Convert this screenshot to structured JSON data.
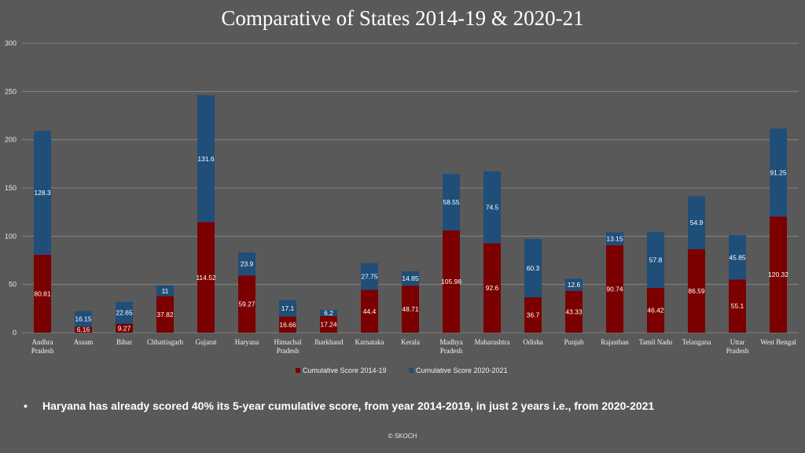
{
  "title": "Comparative of States 2014-19 & 2020-21",
  "note": "Haryana has already scored 40% its 5-year cumulative score, from year 2014-2019,  in just 2 years i.e., from 2020-2021",
  "bullet": "•",
  "footer": "© SKOCH",
  "colors": {
    "series1": "#7b0000",
    "series2": "#1f4e79",
    "grid": "#8c8c8c",
    "background": "#595959"
  },
  "chart_data": {
    "type": "bar",
    "stacked": true,
    "title": "Comparative of States 2014-19 & 2020-21",
    "xlabel": "",
    "ylabel": "",
    "ylim": [
      0,
      300
    ],
    "yticks": [
      0,
      50,
      100,
      150,
      200,
      250,
      300
    ],
    "grid": true,
    "legend": "bottom",
    "categories": [
      [
        "Andhra",
        "Pradesh"
      ],
      [
        "Assam"
      ],
      [
        "Bihar"
      ],
      [
        "Chhattisgarh"
      ],
      [
        "Gujarat"
      ],
      [
        "Haryana"
      ],
      [
        "Himachal",
        "Pradesh"
      ],
      [
        "Jharkhand"
      ],
      [
        "Karnataka"
      ],
      [
        "Kerala"
      ],
      [
        "Madhya",
        "Pradesh"
      ],
      [
        "Maharashtra"
      ],
      [
        "Odisha"
      ],
      [
        "Punjab"
      ],
      [
        "Rajasthan"
      ],
      [
        "Tamil Nadu"
      ],
      [
        "Telangana"
      ],
      [
        "Uttar",
        "Pradesh"
      ],
      [
        "West Bengal"
      ]
    ],
    "series": [
      {
        "name": "Cumulative Score 2014-19",
        "values": [
          80.81,
          6.16,
          9.27,
          37.82,
          114.52,
          59.27,
          16.66,
          17.24,
          44.4,
          48.71,
          105.98,
          92.6,
          36.7,
          43.33,
          90.74,
          46.42,
          86.59,
          55.1,
          120.32
        ]
      },
      {
        "name": "Cumulative Score 2020-2021",
        "values": [
          128.3,
          16.15,
          22.65,
          11,
          131.6,
          23.9,
          17.1,
          6.2,
          27.75,
          14.85,
          58.55,
          74.5,
          60.3,
          12.6,
          13.15,
          57.8,
          54.9,
          45.85,
          91.25
        ]
      }
    ]
  }
}
